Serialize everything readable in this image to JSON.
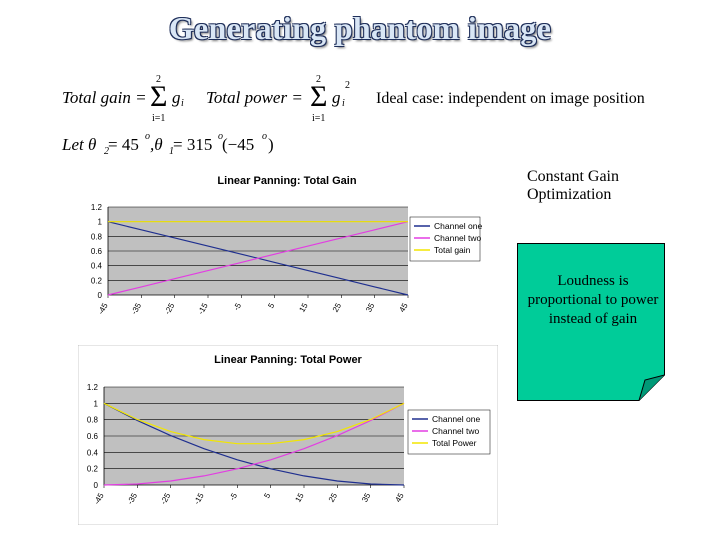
{
  "page": {
    "title": "Generating phantom image",
    "formula_total_gain": "Total gain = Σ g",
    "formula_total_power": "Total power = Σ g",
    "formula_angles": "Let θ2 = 45°, θ1 = 315° (−45°)",
    "ideal_case": "Ideal case: independent on image position",
    "constant_gain_line1": "Constant Gain",
    "constant_gain_line2": "Optimization",
    "note_text": "Loudness is proportional to power instead of gain"
  },
  "formula_parts": {
    "total_gain": "Total gain =",
    "total_power": "Total power =",
    "sum_top": "2",
    "sum_bottom": "i=1",
    "g": "g",
    "i": "i",
    "square": "2",
    "let": "Let θ",
    "sub2": "2",
    "eq45": " = 45",
    "deg": "o",
    "comma": " ,θ",
    "sub1": "1",
    "eq315": " = 315",
    "neg": " (−45",
    "close": ")"
  },
  "colors": {
    "title_fill": "#d9e6f5",
    "title_outline": "#1f2f5a",
    "channel_one": "#1f2f8f",
    "channel_two": "#e23ee2",
    "total": "#f2e600",
    "plot_bg": "#c0c0c0",
    "note_bg": "#00cc99"
  },
  "chart_data": [
    {
      "type": "line",
      "title": "Linear Panning: Total Gain",
      "categories": [
        "-45",
        "-35",
        "-25",
        "-15",
        "-5",
        "5",
        "15",
        "25",
        "35",
        "45"
      ],
      "x": [
        -45,
        -35,
        -25,
        -15,
        -5,
        5,
        15,
        25,
        35,
        45
      ],
      "y_ticks": [
        "0",
        "0.2",
        "0.4",
        "0.6",
        "0.8",
        "1",
        "1.2"
      ],
      "ylim": [
        0,
        1.2
      ],
      "grid": true,
      "legend": "right",
      "series": [
        {
          "name": "Channel one",
          "values": [
            1.0,
            0.889,
            0.778,
            0.667,
            0.556,
            0.444,
            0.333,
            0.222,
            0.111,
            0.0
          ]
        },
        {
          "name": "Channel two",
          "values": [
            0.0,
            0.111,
            0.222,
            0.333,
            0.444,
            0.556,
            0.667,
            0.778,
            0.889,
            1.0
          ]
        },
        {
          "name": "Total gain",
          "values": [
            1,
            1,
            1,
            1,
            1,
            1,
            1,
            1,
            1,
            1
          ]
        }
      ]
    },
    {
      "type": "line",
      "title": "Linear Panning: Total Power",
      "categories": [
        "-45",
        "-35",
        "-25",
        "-15",
        "-5",
        "5",
        "15",
        "25",
        "35",
        "45"
      ],
      "x": [
        -45,
        -35,
        -25,
        -15,
        -5,
        5,
        15,
        25,
        35,
        45
      ],
      "y_ticks": [
        "0",
        "0.2",
        "0.4",
        "0.6",
        "0.8",
        "1",
        "1.2"
      ],
      "ylim": [
        0,
        1.2
      ],
      "grid": true,
      "legend": "right",
      "series": [
        {
          "name": "Channel one",
          "values": [
            1.0,
            0.79,
            0.605,
            0.444,
            0.309,
            0.198,
            0.111,
            0.049,
            0.012,
            0.0
          ]
        },
        {
          "name": "Channel two",
          "values": [
            0.0,
            0.012,
            0.049,
            0.111,
            0.198,
            0.309,
            0.444,
            0.605,
            0.79,
            1.0
          ]
        },
        {
          "name": "Total Power",
          "values": [
            1.0,
            0.802,
            0.654,
            0.556,
            0.506,
            0.506,
            0.556,
            0.654,
            0.802,
            1.0
          ]
        }
      ]
    }
  ]
}
